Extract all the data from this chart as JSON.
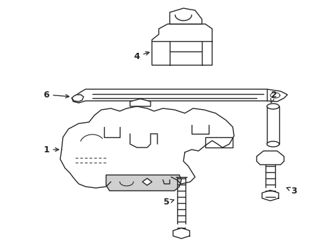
{
  "bg_color": "#ffffff",
  "line_color": "#222222",
  "line_width": 1.0,
  "figsize": [
    4.89,
    3.6
  ],
  "dpi": 100
}
